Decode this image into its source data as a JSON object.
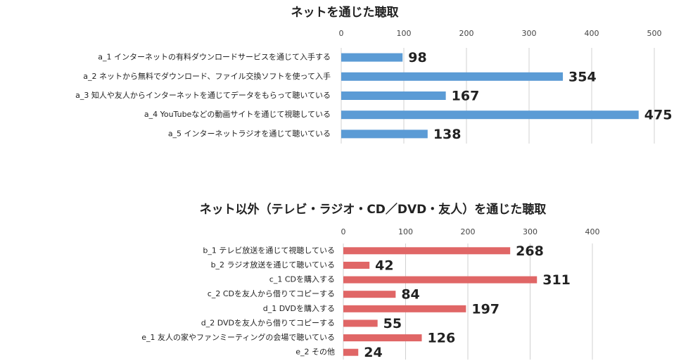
{
  "chart_data": [
    {
      "type": "bar",
      "title": "ネットを通じた聴取",
      "categories": [
        "a_1 インターネットの有料ダウンロードサービスを通じて入手する",
        "a_2 ネットから無料でダウンロード、ファイル交換ソフトを使って入手",
        "a_3 知人や友人からインターネットを通じてデータをもらって聴いている",
        "a_4 YouTubeなどの動画サイトを通じて視聴している",
        "a_5 インターネットラジオを通じて聴いている"
      ],
      "values": [
        98,
        354,
        167,
        475,
        138
      ],
      "color": "#5b9bd5",
      "xlim": [
        0,
        500
      ],
      "xticks": [
        0,
        100,
        200,
        300,
        400,
        500
      ],
      "grid": true
    },
    {
      "type": "bar",
      "title": "ネット以外（テレビ・ラジオ・CD／DVD・友人）を通じた聴取",
      "categories": [
        "b_1 テレビ放送を通じて視聴している",
        "b_2 ラジオ放送を通じて聴いている",
        "c_1 CDを購入する",
        "c_2 CDを友人から借りてコピーする",
        "d_1 DVDを購入する",
        "d_2 DVDを友人から借りてコピーする",
        "e_1 友人の家やファンミーティングの会場で聴いている",
        "e_2 その他"
      ],
      "values": [
        268,
        42,
        311,
        84,
        197,
        55,
        126,
        24
      ],
      "color": "#e06666",
      "xlim": [
        0,
        400
      ],
      "xticks": [
        0,
        100,
        200,
        300,
        400
      ],
      "grid": true
    }
  ]
}
